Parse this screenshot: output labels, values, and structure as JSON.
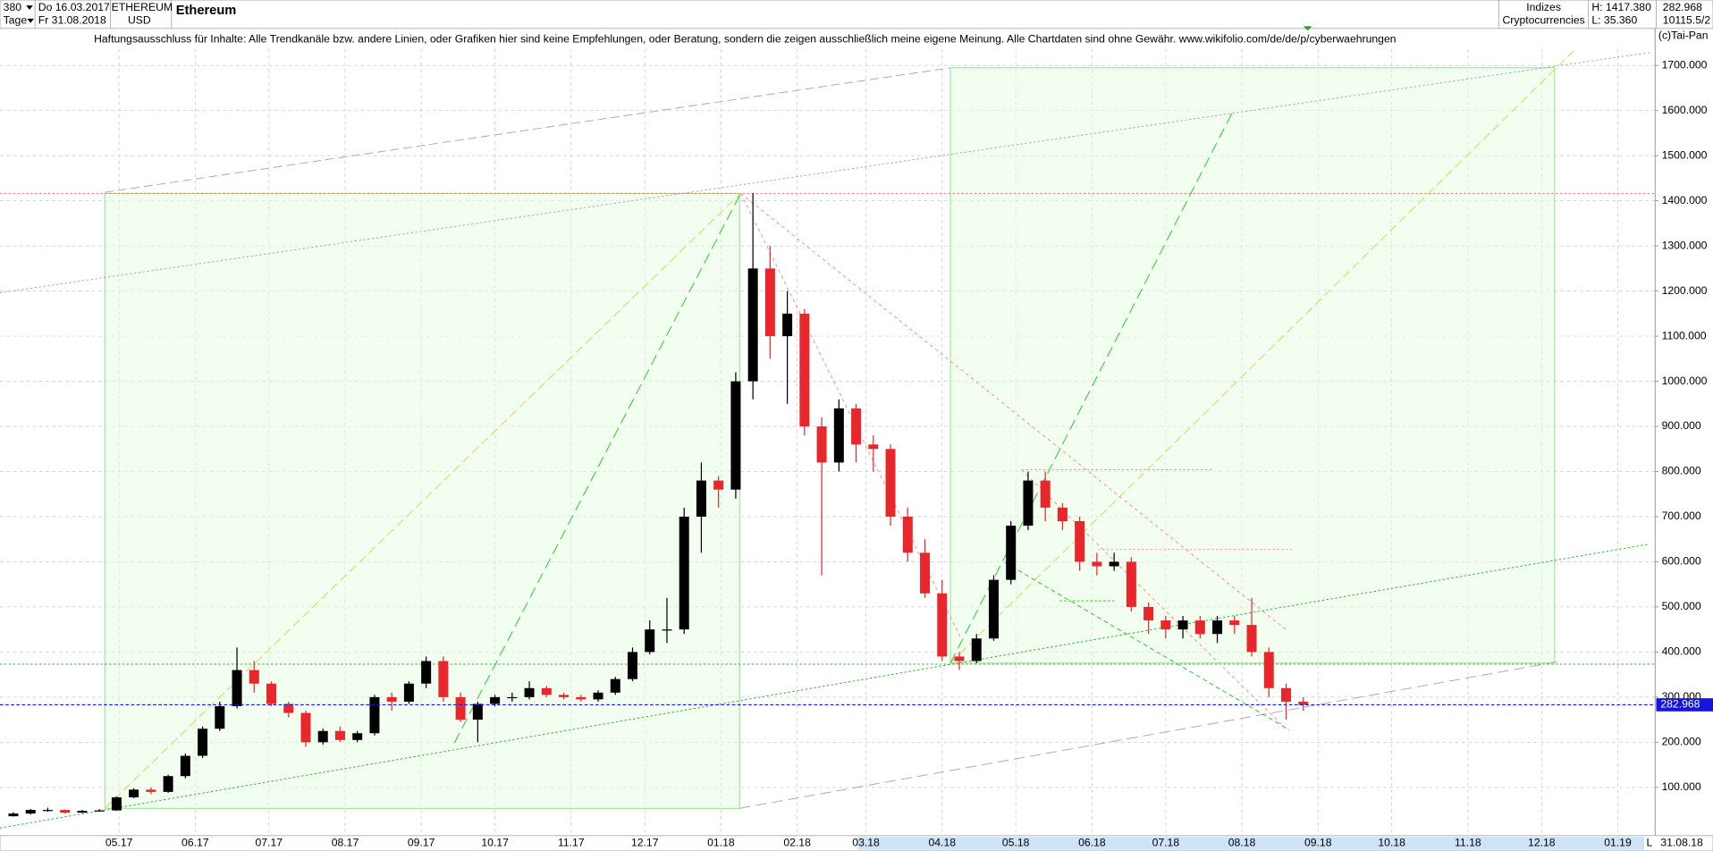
{
  "header": {
    "bars": "380",
    "interval": "Tage",
    "date_from": "Do 16.03.2017",
    "date_to": "Fr 31.08.2018",
    "symbol": "ETHEREUM",
    "currency": "USD",
    "group": "Indizes",
    "group_sub": "Cryptocurrencies",
    "high": "H: 1417.380",
    "low": "L: 35.360",
    "volume": "10115.5/2",
    "disclaimer": "Haftungsausschluss für Inhalte: Alle Trendkanäle bzw. andere Linien, oder Grafiken hier sind keine Empfehlungen, oder Beratung, sondern die zeigen ausschließlich meine eigene Meinung. Alle Chartdaten sind ohne Gewähr.  www.wikifolio.com/de/de/p/cyberwaehrungen",
    "copyright": "(c)Tai-Pan",
    "footer_date": "31.08.18",
    "footer_mode": "L"
  },
  "chart_data": {
    "type": "candlestick",
    "title": "Ethereum",
    "up_color": "#000000",
    "down_color": "#e8262b",
    "last_color": "#1515e0",
    "open": [
      36,
      42,
      50,
      50,
      44,
      48,
      49,
      78,
      95,
      90,
      125,
      170,
      230,
      280,
      360,
      330,
      285,
      265,
      200,
      225,
      205,
      220,
      300,
      290,
      330,
      380,
      300,
      250,
      285,
      300,
      300,
      320,
      305,
      300,
      295,
      310,
      340,
      400,
      450,
      450,
      700,
      780,
      760,
      1000,
      1250,
      1100,
      1150,
      900,
      820,
      940,
      860,
      850,
      700,
      620,
      530,
      390,
      380,
      430,
      560,
      680,
      780,
      720,
      690,
      600,
      590,
      600,
      500,
      470,
      450,
      470,
      440,
      470,
      460,
      400,
      320,
      290
    ],
    "high": [
      45,
      52,
      55,
      51,
      50,
      52,
      80,
      98,
      100,
      128,
      175,
      235,
      290,
      410,
      380,
      335,
      290,
      270,
      230,
      235,
      225,
      305,
      310,
      335,
      390,
      390,
      310,
      290,
      305,
      310,
      335,
      325,
      310,
      305,
      315,
      345,
      410,
      470,
      520,
      720,
      820,
      790,
      1020,
      1417.38,
      1300,
      1200,
      1160,
      920,
      960,
      950,
      880,
      860,
      720,
      650,
      560,
      400,
      440,
      570,
      690,
      800,
      800,
      730,
      700,
      620,
      620,
      610,
      510,
      480,
      480,
      480,
      480,
      480,
      520,
      410,
      330,
      300
    ],
    "low": [
      35.36,
      40,
      46,
      42,
      43,
      46,
      48,
      76,
      85,
      88,
      120,
      165,
      225,
      275,
      310,
      280,
      255,
      190,
      195,
      200,
      200,
      215,
      270,
      285,
      320,
      290,
      245,
      200,
      280,
      290,
      295,
      300,
      295,
      290,
      290,
      305,
      335,
      395,
      420,
      440,
      620,
      720,
      740,
      960,
      1050,
      950,
      880,
      570,
      800,
      820,
      800,
      680,
      600,
      520,
      380,
      360,
      375,
      425,
      550,
      670,
      690,
      670,
      580,
      570,
      580,
      490,
      440,
      430,
      430,
      430,
      420,
      440,
      390,
      300,
      250,
      270
    ],
    "close": [
      42,
      50,
      50,
      44,
      48,
      49,
      78,
      95,
      90,
      125,
      170,
      230,
      280,
      360,
      330,
      285,
      265,
      200,
      225,
      205,
      220,
      300,
      290,
      330,
      380,
      300,
      250,
      285,
      300,
      300,
      320,
      305,
      300,
      295,
      310,
      340,
      400,
      450,
      450,
      700,
      780,
      760,
      1000,
      1250,
      1100,
      1150,
      900,
      820,
      940,
      860,
      850,
      700,
      620,
      530,
      390,
      380,
      430,
      560,
      680,
      780,
      720,
      690,
      600,
      590,
      600,
      500,
      470,
      450,
      470,
      440,
      470,
      460,
      400,
      320,
      290,
      282.968
    ],
    "ylim": [
      -7,
      1736
    ],
    "yticks": [
      {
        "value": 100,
        "label": "100.000"
      },
      {
        "value": 200,
        "label": "200.000"
      },
      {
        "value": 300,
        "label": "300.000"
      },
      {
        "value": 400,
        "label": "400.000"
      },
      {
        "value": 500,
        "label": "500.000"
      },
      {
        "value": 600,
        "label": "600.000"
      },
      {
        "value": 700,
        "label": "700.000"
      },
      {
        "value": 800,
        "label": "800.000"
      },
      {
        "value": 900,
        "label": "900.000"
      },
      {
        "value": 1000,
        "label": "1000.000"
      },
      {
        "value": 1100,
        "label": "1100.000"
      },
      {
        "value": 1200,
        "label": "1200.000"
      },
      {
        "value": 1300,
        "label": "1300.000"
      },
      {
        "value": 1400,
        "label": "1400.000"
      },
      {
        "value": 1500,
        "label": "1500.000"
      },
      {
        "value": 1600,
        "label": "1600.000"
      },
      {
        "value": 1700,
        "label": "1700.000"
      }
    ],
    "xticks": [
      "05.17",
      "06.17",
      "07.17",
      "08.17",
      "09.17",
      "10.17",
      "11.17",
      "12.17",
      "01.18",
      "02.18",
      "03.18",
      "04.18",
      "05.18",
      "06.18",
      "07.18",
      "08.18",
      "09.18",
      "10.18",
      "11.18",
      "12.18",
      "01.19"
    ],
    "grid": true
  }
}
